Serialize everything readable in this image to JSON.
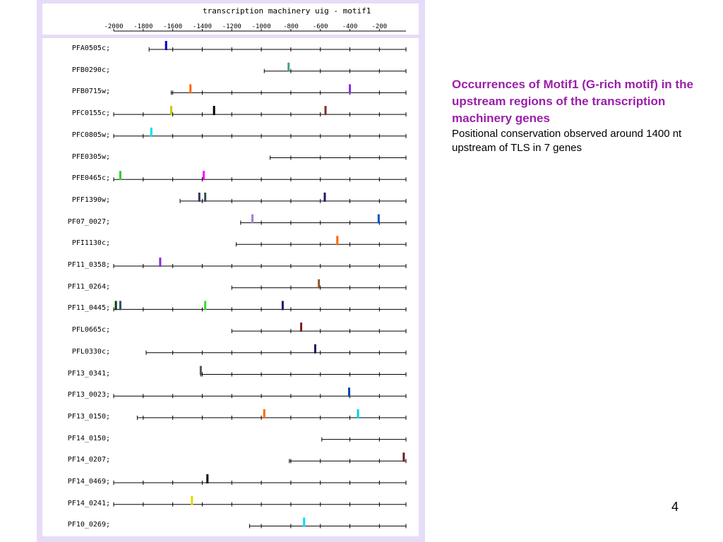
{
  "slide": {
    "caption_heading": "Occurrences of Motif1 (G-rich motif) in the upstream regions of the transcription machinery genes",
    "caption_body": "Positional conservation observed around 1400 nt upstream of TLS in 7 genes",
    "page_number": "4"
  },
  "chart_data": {
    "type": "scatter",
    "title": "transcription machinery uig - motif1",
    "xlabel": "",
    "ylabel": "",
    "xlim": [
      -2000,
      -20
    ],
    "x_ticks": [
      -2000,
      -1800,
      -1600,
      -1400,
      -1200,
      -1000,
      -800,
      -600,
      -400,
      -200
    ],
    "x_tick_labels": [
      "-2000",
      "-1800",
      "-1600",
      "-1400",
      "-1200",
      "-1000",
      "-800",
      "-600",
      "-400",
      "-200"
    ],
    "row_tick_positions": [
      -1800,
      -1600,
      -1400,
      -1200,
      -1000,
      -800,
      -600,
      -400,
      -200,
      -20
    ],
    "genes": [
      {
        "name": "PFA0505c;",
        "start": -1760,
        "motifs": [
          {
            "x": -1645,
            "color": "#0000cc"
          }
        ]
      },
      {
        "name": "PFB0290c;",
        "start": -980,
        "motifs": [
          {
            "x": -815,
            "color": "#4a9e74"
          }
        ]
      },
      {
        "name": "PFB0715w;",
        "start": -1610,
        "motifs": [
          {
            "x": -1480,
            "color": "#ff6600"
          },
          {
            "x": -400,
            "color": "#8a2be2"
          }
        ]
      },
      {
        "name": "PFC0155c;",
        "start": -2000,
        "motifs": [
          {
            "x": -1610,
            "color": "#c8c800"
          },
          {
            "x": -1320,
            "color": "#000000"
          },
          {
            "x": -565,
            "color": "#7a3324"
          }
        ]
      },
      {
        "name": "PFC0805w;",
        "start": -2000,
        "motifs": [
          {
            "x": -1745,
            "color": "#00e0f0"
          }
        ]
      },
      {
        "name": "PFE0305w;",
        "start": -940,
        "motifs": []
      },
      {
        "name": "PFE0465c;",
        "start": -2000,
        "motifs": [
          {
            "x": -1955,
            "color": "#33cc33"
          },
          {
            "x": -1390,
            "color": "#ff00ff"
          }
        ]
      },
      {
        "name": "PFF1390w;",
        "start": -1550,
        "motifs": [
          {
            "x": -1420,
            "color": "#333366"
          },
          {
            "x": -1380,
            "color": "#2f4f4f"
          },
          {
            "x": -570,
            "color": "#1a1a6e"
          }
        ]
      },
      {
        "name": "PF07_0027;",
        "start": -1140,
        "motifs": [
          {
            "x": -1060,
            "color": "#a080d0"
          },
          {
            "x": -205,
            "color": "#0055cc"
          }
        ]
      },
      {
        "name": "PFI1130c;",
        "start": -1170,
        "motifs": [
          {
            "x": -485,
            "color": "#ff6600"
          }
        ]
      },
      {
        "name": "PF11_0358;",
        "start": -2000,
        "motifs": [
          {
            "x": -1685,
            "color": "#8a2be2"
          }
        ]
      },
      {
        "name": "PF11_0264;",
        "start": -1200,
        "motifs": [
          {
            "x": -610,
            "color": "#8b5a2b"
          }
        ]
      },
      {
        "name": "PF11_0445;",
        "start": -2000,
        "motifs": [
          {
            "x": -1985,
            "color": "#004400"
          },
          {
            "x": -1955,
            "color": "#2f4f6f"
          },
          {
            "x": -1380,
            "color": "#33dd33"
          },
          {
            "x": -855,
            "color": "#1a1a6e"
          }
        ]
      },
      {
        "name": "PFL0665c;",
        "start": -1200,
        "motifs": [
          {
            "x": -730,
            "color": "#7a2020"
          }
        ]
      },
      {
        "name": "PFL0330c;",
        "start": -1780,
        "motifs": [
          {
            "x": -635,
            "color": "#1a1a5e"
          }
        ]
      },
      {
        "name": "PF13_0341;",
        "start": -1410,
        "motifs": [
          {
            "x": -1410,
            "color": "#555555"
          }
        ]
      },
      {
        "name": "PF13_0023;",
        "start": -2000,
        "motifs": [
          {
            "x": -405,
            "color": "#0044aa"
          }
        ]
      },
      {
        "name": "PF13_0150;",
        "start": -1840,
        "motifs": [
          {
            "x": -980,
            "color": "#ff6600"
          },
          {
            "x": -345,
            "color": "#00d0e0"
          }
        ]
      },
      {
        "name": "PF14_0150;",
        "start": -590,
        "motifs": []
      },
      {
        "name": "PF14_0207;",
        "start": -810,
        "motifs": [
          {
            "x": -35,
            "color": "#6a2020"
          }
        ]
      },
      {
        "name": "PF14_0469;",
        "start": -2000,
        "motifs": [
          {
            "x": -1365,
            "color": "#000000"
          }
        ]
      },
      {
        "name": "PF14_0241;",
        "start": -2000,
        "motifs": [
          {
            "x": -1470,
            "color": "#dddd00"
          }
        ]
      },
      {
        "name": "PF10_0269;",
        "start": -1080,
        "motifs": [
          {
            "x": -710,
            "color": "#00e0f0"
          }
        ]
      }
    ]
  }
}
